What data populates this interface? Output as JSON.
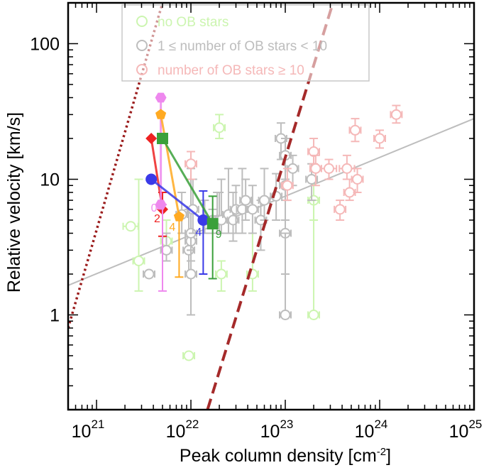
{
  "chart_data": {
    "type": "scatter",
    "xlabel": "Peak column density [cm",
    "xlabel_sup": "-2",
    "xlabel_end": "]",
    "ylabel": "Relative velocity [km/s]",
    "x_scale": "log",
    "y_scale": "log",
    "xlim": [
      5e+20,
      1e+25
    ],
    "ylim": [
      0.2,
      200
    ],
    "x_ticks": [
      {
        "value": 1e+21,
        "base": "10",
        "exp": "21"
      },
      {
        "value": 1e+22,
        "base": "10",
        "exp": "22"
      },
      {
        "value": 1e+23,
        "base": "10",
        "exp": "23"
      },
      {
        "value": 1e+24,
        "base": "10",
        "exp": "24"
      },
      {
        "value": 1e+25,
        "base": "10",
        "exp": "25"
      }
    ],
    "y_ticks": [
      {
        "value": 1,
        "label": "1"
      },
      {
        "value": 10,
        "label": "10"
      },
      {
        "value": 100,
        "label": "100"
      }
    ],
    "legend": {
      "placement": "top-center",
      "entries": [
        {
          "label": "no OB stars",
          "color": "#ccf5b0"
        },
        {
          "label": "1 ≤ number of OB stars < 10",
          "color": "#bdbdbd"
        },
        {
          "label": "number of OB stars ≥ 10",
          "color": "#f5b8b8"
        }
      ]
    },
    "colors": {
      "no_ob": "#ccf5b0",
      "few_ob": "#bdbdbd",
      "many_ob": "#f5b8b8",
      "fit_line": "#bdbdbd",
      "dotted_line": "#9b1c1c",
      "dashed_line": "#a52a2a",
      "sim_red": "#ee2222",
      "sim_pink": "#ee88ee",
      "sim_orange": "#ffaa22",
      "sim_blue": "#3a3ae8",
      "sim_green": "#3aa03a"
    },
    "series": [
      {
        "name": "no OB stars",
        "color": "#ccf5b0",
        "points": [
          {
            "x": 2.3e+21,
            "y": 4.5,
            "xerr": 0.08,
            "ylo": 4.5,
            "yhi": 4.5
          },
          {
            "x": 2.8e+21,
            "y": 2.5,
            "xerr": 0.06,
            "ylo": 1.5,
            "yhi": 10
          },
          {
            "x": 5.5e+21,
            "y": 3.5,
            "xerr": 0.06,
            "ylo": 2.5,
            "yhi": 5
          },
          {
            "x": 9.5e+21,
            "y": 0.5,
            "xerr": 0.06,
            "ylo": 0.5,
            "yhi": 0.5
          },
          {
            "x": 2e+22,
            "y": 24,
            "xerr": 0.06,
            "ylo": 20,
            "yhi": 30
          },
          {
            "x": 2.1e+22,
            "y": 2,
            "xerr": 0.06,
            "ylo": 1.5,
            "yhi": 2.5
          },
          {
            "x": 4.5e+22,
            "y": 2,
            "xerr": 0.06,
            "ylo": 1.5,
            "yhi": 4
          },
          {
            "x": 2e+23,
            "y": 7,
            "xerr": 0.06,
            "ylo": 5,
            "yhi": 10
          },
          {
            "x": 2e+23,
            "y": 1,
            "xerr": 0.06,
            "ylo": 1,
            "yhi": 7
          }
        ]
      },
      {
        "name": "1 ≤ number of OB stars < 10",
        "color": "#bdbdbd",
        "points": [
          {
            "x": 3.6e+21,
            "y": 2,
            "xerr": 0.06,
            "ylo": 2,
            "yhi": 2
          },
          {
            "x": 5.5e+21,
            "y": 3,
            "xerr": 0.06,
            "ylo": 2.5,
            "yhi": 4
          },
          {
            "x": 8e+21,
            "y": 5.5,
            "xerr": 0.06,
            "ylo": 4,
            "yhi": 8
          },
          {
            "x": 9.5e+21,
            "y": 3,
            "xerr": 0.06,
            "ylo": 2,
            "yhi": 6
          },
          {
            "x": 1e+22,
            "y": 3.5,
            "xerr": 0.06,
            "ylo": 2.5,
            "yhi": 12
          },
          {
            "x": 1e+22,
            "y": 4,
            "xerr": 0.06,
            "ylo": 3,
            "yhi": 13
          },
          {
            "x": 1e+22,
            "y": 2,
            "xerr": 0.06,
            "ylo": 1,
            "yhi": 3
          },
          {
            "x": 1.05e+22,
            "y": 6,
            "xerr": 0.06,
            "ylo": 4,
            "yhi": 10
          },
          {
            "x": 1.4e+22,
            "y": 5,
            "xerr": 0.06,
            "ylo": 4,
            "yhi": 7
          },
          {
            "x": 1.7e+22,
            "y": 5,
            "xerr": 0.06,
            "ylo": 4,
            "yhi": 6
          },
          {
            "x": 1.9e+22,
            "y": 5,
            "xerr": 0.06,
            "ylo": 4,
            "yhi": 8
          },
          {
            "x": 2e+22,
            "y": 5,
            "xerr": 0.06,
            "ylo": 4,
            "yhi": 8
          },
          {
            "x": 2.1e+22,
            "y": 5,
            "xerr": 0.06,
            "ylo": 4,
            "yhi": 10
          },
          {
            "x": 2.5e+22,
            "y": 5.5,
            "xerr": 0.06,
            "ylo": 4,
            "yhi": 12
          },
          {
            "x": 2.8e+22,
            "y": 5,
            "xerr": 0.06,
            "ylo": 3.5,
            "yhi": 8
          },
          {
            "x": 3e+22,
            "y": 6,
            "xerr": 0.06,
            "ylo": 4,
            "yhi": 9
          },
          {
            "x": 3.5e+22,
            "y": 6,
            "xerr": 0.06,
            "ylo": 4,
            "yhi": 12
          },
          {
            "x": 3.8e+22,
            "y": 7,
            "xerr": 0.06,
            "ylo": 5,
            "yhi": 10
          },
          {
            "x": 4.5e+22,
            "y": 6,
            "xerr": 0.06,
            "ylo": 4,
            "yhi": 9
          },
          {
            "x": 5.5e+22,
            "y": 5,
            "xerr": 0.06,
            "ylo": 3,
            "yhi": 7
          },
          {
            "x": 6e+22,
            "y": 7,
            "xerr": 0.06,
            "ylo": 5,
            "yhi": 12
          },
          {
            "x": 8e+22,
            "y": 7.5,
            "xerr": 0.06,
            "ylo": 5,
            "yhi": 11
          },
          {
            "x": 9e+22,
            "y": 20,
            "xerr": 0.06,
            "ylo": 14,
            "yhi": 26
          },
          {
            "x": 1e+23,
            "y": 9,
            "xerr": 0.06,
            "ylo": 5,
            "yhi": 20
          },
          {
            "x": 1e+23,
            "y": 15,
            "xerr": 0.06,
            "ylo": 10,
            "yhi": 20
          },
          {
            "x": 1e+23,
            "y": 4,
            "xerr": 0.06,
            "ylo": 2,
            "yhi": 7
          },
          {
            "x": 1e+23,
            "y": 1,
            "xerr": 0.06,
            "ylo": 1,
            "yhi": 4
          },
          {
            "x": 1.2e+23,
            "y": 12,
            "xerr": 0.06,
            "ylo": 9,
            "yhi": 15
          },
          {
            "x": 1.9e+23,
            "y": 10,
            "xerr": 0.06,
            "ylo": 7,
            "yhi": 13
          }
        ]
      },
      {
        "name": "number of OB stars ≥ 10",
        "color": "#f5b8b8",
        "points": [
          {
            "x": 1e+22,
            "y": 13,
            "xerr": 0.06,
            "ylo": 10,
            "yhi": 16
          },
          {
            "x": 1.05e+23,
            "y": 9,
            "xerr": 0.06,
            "ylo": 7,
            "yhi": 12
          },
          {
            "x": 2e+23,
            "y": 16,
            "xerr": 0.06,
            "ylo": 13,
            "yhi": 20
          },
          {
            "x": 2.1e+23,
            "y": 12,
            "xerr": 0.06,
            "ylo": 9,
            "yhi": 15
          },
          {
            "x": 2.9e+23,
            "y": 12,
            "xerr": 0.08,
            "ylo": 10,
            "yhi": 14
          },
          {
            "x": 3.8e+23,
            "y": 6,
            "xerr": 0.06,
            "ylo": 5,
            "yhi": 7
          },
          {
            "x": 4.5e+23,
            "y": 12,
            "xerr": 0.08,
            "ylo": 10,
            "yhi": 15
          },
          {
            "x": 4.8e+23,
            "y": 8,
            "xerr": 0.06,
            "ylo": 7,
            "yhi": 10
          },
          {
            "x": 5.5e+23,
            "y": 23,
            "xerr": 0.06,
            "ylo": 19,
            "yhi": 28
          },
          {
            "x": 5.8e+23,
            "y": 10,
            "xerr": 0.06,
            "ylo": 8,
            "yhi": 12
          },
          {
            "x": 1e+24,
            "y": 20,
            "xerr": 0.06,
            "ylo": 17,
            "yhi": 23
          },
          {
            "x": 1.5e+24,
            "y": 30,
            "xerr": 0.06,
            "ylo": 26,
            "yhi": 35
          }
        ]
      }
    ],
    "fit_line": {
      "x": [
        5e+20,
        1e+25
      ],
      "y": [
        1.65,
        28
      ]
    },
    "dotted_line": {
      "x": [
        5e+20,
        5e+21
      ],
      "y": [
        0.8,
        200
      ]
    },
    "dashed_line": {
      "x": [
        1.5e+22,
        3.2e+23
      ],
      "y": [
        0.2,
        200
      ]
    },
    "simulation_tracks": [
      {
        "name": "red",
        "color": "#ee2222",
        "marker": "diamond",
        "label": "2",
        "points": [
          {
            "x": 3.8e+21,
            "y": 20
          },
          {
            "x": 5e+21,
            "y": 6
          }
        ],
        "errbar": {
          "x": 5e+21,
          "lo": 3.8,
          "hi": 8
        }
      },
      {
        "name": "pink",
        "color": "#ee88ee",
        "marker": "hexagon",
        "label": "0",
        "points": [
          {
            "x": 4.8e+21,
            "y": 40
          },
          {
            "x": 4.8e+21,
            "y": 6.5
          }
        ],
        "errbar": {
          "x": 5e+21,
          "lo": 1.5,
          "hi": 6.5
        }
      },
      {
        "name": "orange",
        "color": "#ffaa22",
        "marker": "pentagon",
        "label": "4",
        "points": [
          {
            "x": 4.8e+21,
            "y": 30
          },
          {
            "x": 7.5e+21,
            "y": 5.3
          }
        ],
        "errbar": {
          "x": 7.5e+21,
          "lo": 1.9,
          "hi": 5.3
        }
      },
      {
        "name": "blue",
        "color": "#3a3ae8",
        "marker": "circle",
        "label": "4",
        "points": [
          {
            "x": 3.8e+21,
            "y": 10
          },
          {
            "x": 1.35e+22,
            "y": 5
          }
        ],
        "errbar": {
          "x": 1.35e+22,
          "lo": 2,
          "hi": 8.2
        }
      },
      {
        "name": "green",
        "color": "#3aa03a",
        "marker": "square",
        "label": "9",
        "points": [
          {
            "x": 5e+21,
            "y": 20
          },
          {
            "x": 1.7e+22,
            "y": 4.7
          }
        ],
        "errbar": {
          "x": 1.7e+22,
          "lo": 1.85,
          "hi": 7.5
        }
      }
    ]
  }
}
